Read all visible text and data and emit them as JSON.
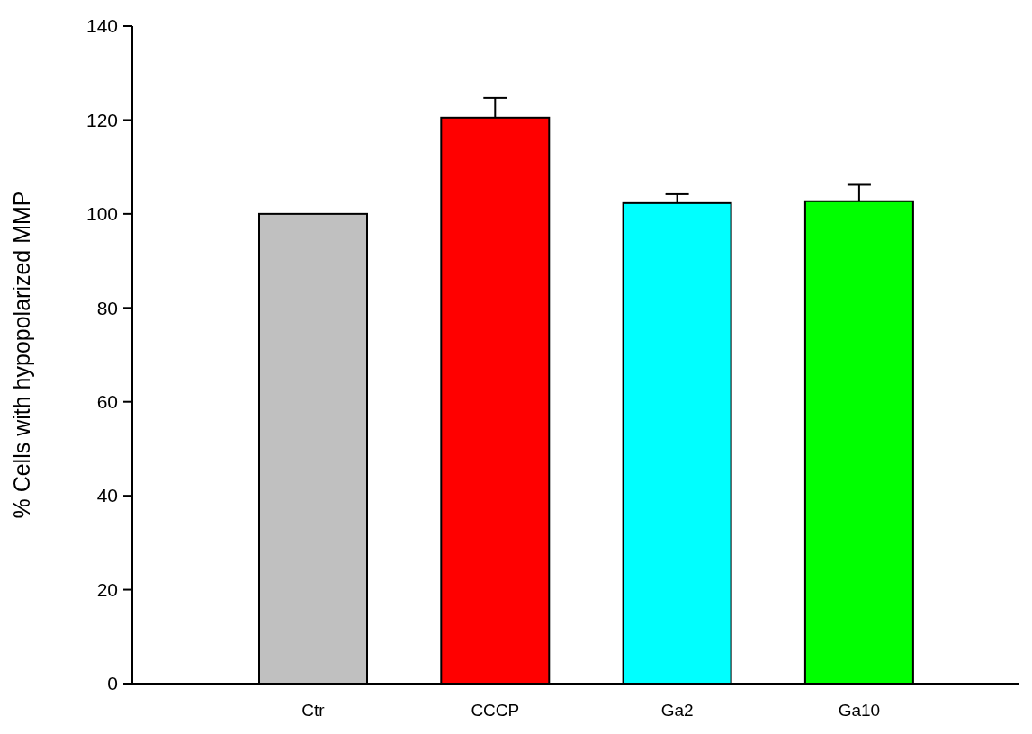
{
  "chart_data": {
    "type": "bar",
    "ylabel": "% Cells with hypopolarized MMP",
    "categories": [
      "Ctr",
      "CCCP",
      "Ga2",
      "Ga10"
    ],
    "values": [
      100,
      120.5,
      102.3,
      102.7
    ],
    "colors": [
      "#c0c0c0",
      "#ff0000",
      "#00ffff",
      "#00ff00"
    ],
    "errors": [
      null,
      4.2,
      1.9,
      3.5
    ],
    "ylim": [
      0,
      140
    ],
    "yticks": [
      0,
      20,
      40,
      60,
      80,
      100,
      120,
      140
    ],
    "grid": false
  }
}
